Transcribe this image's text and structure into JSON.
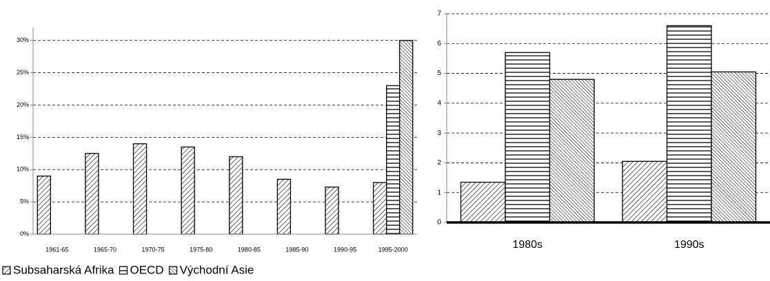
{
  "chart_data": [
    {
      "type": "bar",
      "categories": [
        "1961-65",
        "1965-70",
        "1970-75",
        "1975-80",
        "1980-85",
        "1985-90",
        "1990-95",
        "1995-2000"
      ],
      "series": [
        {
          "name": "Subsaharská Afrika",
          "color": "#000000",
          "pattern": "diagonal",
          "values": [
            9,
            12.5,
            14,
            13.5,
            12,
            8.5,
            7.3,
            8
          ]
        },
        {
          "name": "OECD",
          "color": "#000000",
          "pattern": "horizontal",
          "values": [
            null,
            null,
            null,
            null,
            null,
            null,
            null,
            23
          ]
        },
        {
          "name": "Východní Asie",
          "color": "#000000",
          "pattern": "backdiagonal",
          "values": [
            null,
            null,
            null,
            null,
            null,
            null,
            null,
            30
          ]
        }
      ],
      "ylim": [
        0,
        32
      ],
      "yticks": [
        {
          "value": 0,
          "label": "0%"
        },
        {
          "value": 5,
          "label": "5%"
        },
        {
          "value": 10,
          "label": "10%"
        },
        {
          "value": 15,
          "label": "15%"
        },
        {
          "value": 20,
          "label": "20%"
        },
        {
          "value": 25,
          "label": "25%"
        },
        {
          "value": 30,
          "label": "30%"
        }
      ],
      "grid": true
    },
    {
      "type": "bar",
      "categories": [
        "1980s",
        "1990s"
      ],
      "series": [
        {
          "color": "#000000",
          "pattern": "diagonal",
          "values": [
            1.35,
            2.05
          ]
        },
        {
          "color": "#000000",
          "pattern": "horizontal",
          "values": [
            5.7,
            6.6
          ]
        },
        {
          "color": "#000000",
          "pattern": "backdiagonal",
          "values": [
            4.8,
            5.05
          ]
        }
      ],
      "ylim": [
        0,
        7
      ],
      "yticks": [
        0,
        1,
        2,
        3,
        4,
        5,
        6,
        7
      ],
      "grid": true
    }
  ]
}
